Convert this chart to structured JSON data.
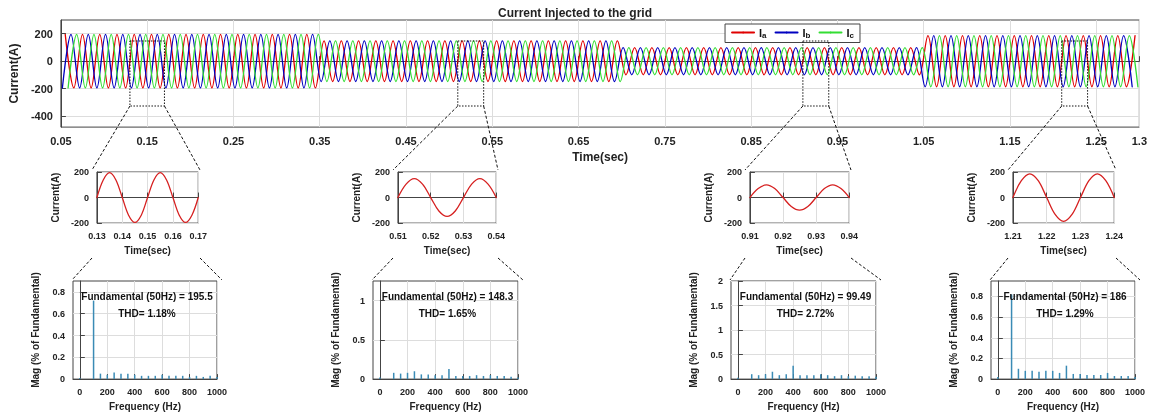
{
  "chart_data": [
    {
      "type": "line",
      "title": "Current Injected to the grid",
      "xlabel": "Time(sec)",
      "ylabel": "Current(A)",
      "xlim": [
        0.05,
        1.3
      ],
      "xticks": [
        0.05,
        0.15,
        0.25,
        0.35,
        0.45,
        0.55,
        0.65,
        0.75,
        0.85,
        0.95,
        1.05,
        1.15,
        1.25,
        1.3
      ],
      "ylim": [
        -480,
        300
      ],
      "yticks": [
        -400,
        -200,
        0,
        200
      ],
      "grid": true,
      "legend": "top right",
      "series": [
        {
          "name": "I$_{a}$",
          "color": "#e00000",
          "x": [
            0.055,
            0.065,
            0.075,
            0.085,
            0.095,
            0.105,
            0.115,
            0.125,
            0.135,
            0.145,
            0.155,
            0.165,
            0.175,
            0.185,
            0.195,
            0.205,
            0.215,
            0.225,
            0.235,
            0.245,
            0.255,
            0.265,
            0.275,
            0.285,
            0.295,
            0.305,
            0.315,
            0.325,
            0.335,
            0.345,
            0.355,
            0.365,
            0.375,
            0.385,
            0.395,
            0.405,
            0.415,
            0.425,
            0.435,
            0.445,
            0.455,
            0.465,
            0.475,
            0.485,
            0.495,
            0.505,
            0.515,
            0.525,
            0.535,
            0.545,
            0.555,
            0.565,
            0.575,
            0.585,
            0.595,
            0.605,
            0.615,
            0.625,
            0.635,
            0.645,
            0.655,
            0.665,
            0.675,
            0.685,
            0.695,
            0.705,
            0.715,
            0.725,
            0.735,
            0.745,
            0.755,
            0.765,
            0.775,
            0.785,
            0.795,
            0.805,
            0.815,
            0.825,
            0.835,
            0.845,
            0.855,
            0.865,
            0.875,
            0.885,
            0.895,
            0.905,
            0.915,
            0.925,
            0.935,
            0.945,
            0.955,
            0.965,
            0.975,
            0.985,
            0.995,
            1.005,
            1.015,
            1.025,
            1.035,
            1.045,
            1.055,
            1.065,
            1.075,
            1.085,
            1.095,
            1.105,
            1.115,
            1.125,
            1.135,
            1.145,
            1.155,
            1.165,
            1.175,
            1.185,
            1.195,
            1.205,
            1.215,
            1.225,
            1.235,
            1.245,
            1.255,
            1.265,
            1.275,
            1.285,
            1.295
          ],
          "values": [
            195,
            -195,
            195,
            -195,
            195,
            -195,
            195,
            -195,
            195,
            -195,
            195,
            -195,
            195,
            -195,
            195,
            -195,
            195,
            -195,
            195,
            -195,
            195,
            -195,
            195,
            -195,
            195,
            -195,
            195,
            -195,
            195,
            -195,
            148,
            -148,
            148,
            -148,
            148,
            -148,
            148,
            -148,
            148,
            -148,
            148,
            -148,
            148,
            -148,
            148,
            -148,
            148,
            -148,
            148,
            -148,
            148,
            -148,
            148,
            -148,
            148,
            -148,
            148,
            -148,
            148,
            -148,
            148,
            -148,
            148,
            -148,
            148,
            -99,
            99,
            -99,
            99,
            -99,
            99,
            -99,
            99,
            -99,
            99,
            -99,
            99,
            -99,
            99,
            -99,
            99,
            -99,
            99,
            -99,
            99,
            -99,
            99,
            -99,
            99,
            -99,
            99,
            -99,
            99,
            -99,
            99,
            -99,
            99,
            -99,
            99,
            -99,
            186,
            -186,
            186,
            -186,
            186,
            -186,
            186,
            -186,
            186,
            -186,
            186,
            -186,
            186,
            -186,
            186,
            -186,
            186,
            -186,
            186,
            -186,
            186,
            -186,
            186,
            -186,
            186
          ]
        },
        {
          "name": "I$_{b}$",
          "color": "#0000c0",
          "x": [
            0.0517,
            0.0617,
            0.0717,
            0.0817,
            0.0917,
            0.1017,
            0.1117,
            0.1217,
            0.1317,
            0.1417,
            0.1517,
            0.1617,
            0.1717,
            0.1817,
            0.1917,
            0.2017,
            0.2117,
            0.2217,
            0.2317,
            0.2417,
            0.2517,
            0.2617,
            0.2717,
            0.2817,
            0.2917,
            0.3017,
            0.3117,
            0.3217,
            0.3317,
            0.3417,
            0.3517,
            0.3617,
            0.3717,
            0.3817,
            0.3917,
            0.4017,
            0.4117,
            0.4217,
            0.4317,
            0.4417,
            0.4517,
            0.4617,
            0.4717,
            0.4817,
            0.4917,
            0.5017,
            0.5117,
            0.5217,
            0.5317,
            0.5417,
            0.5517,
            0.5617,
            0.5717,
            0.5817,
            0.5917,
            0.6017,
            0.6117,
            0.6217,
            0.6317,
            0.6417,
            0.6517,
            0.6617,
            0.6717,
            0.6817,
            0.6917,
            0.7017,
            0.7117,
            0.7217,
            0.7317,
            0.7417,
            0.7517,
            0.7617,
            0.7717,
            0.7817,
            0.7917,
            0.8017,
            0.8117,
            0.8217,
            0.8317,
            0.8417,
            0.8517,
            0.8617,
            0.8717,
            0.8817,
            0.8917,
            0.9017,
            0.9117,
            0.9217,
            0.9317,
            0.9417,
            0.9517,
            0.9617,
            0.9717,
            0.9817,
            0.9917,
            1.0017,
            1.0117,
            1.0217,
            1.0317,
            1.0417,
            1.0517,
            1.0617,
            1.0717,
            1.0817,
            1.0917,
            1.1017,
            1.1117,
            1.1217,
            1.1317,
            1.1417,
            1.1517,
            1.1617,
            1.1717,
            1.1817,
            1.1917,
            1.2017,
            1.2117,
            1.2217,
            1.2317,
            1.2417,
            1.2517,
            1.2617,
            1.2717,
            1.2817,
            1.2917
          ],
          "values": [
            -195,
            195,
            -195,
            195,
            -195,
            195,
            -195,
            195,
            -195,
            195,
            -195,
            195,
            -195,
            195,
            -195,
            195,
            -195,
            195,
            -195,
            195,
            -195,
            195,
            -195,
            195,
            -195,
            195,
            -195,
            195,
            -195,
            195,
            -148,
            148,
            -148,
            148,
            -148,
            148,
            -148,
            148,
            -148,
            148,
            -148,
            148,
            -148,
            148,
            -148,
            148,
            -148,
            148,
            -148,
            148,
            -148,
            148,
            -148,
            148,
            -148,
            148,
            -148,
            148,
            -148,
            148,
            -148,
            148,
            -148,
            148,
            -148,
            99,
            -99,
            99,
            -99,
            99,
            -99,
            99,
            -99,
            99,
            -99,
            99,
            -99,
            99,
            -99,
            99,
            -99,
            99,
            -99,
            99,
            -99,
            99,
            -99,
            99,
            -99,
            99,
            -99,
            99,
            -99,
            99,
            -99,
            99,
            -99,
            99,
            -99,
            99,
            -186,
            186,
            -186,
            186,
            -186,
            186,
            -186,
            186,
            -186,
            186,
            -186,
            186,
            -186,
            186,
            -186,
            186,
            -186,
            186,
            -186,
            186,
            -186,
            186,
            -186,
            186,
            -186
          ]
        },
        {
          "name": "I$_{c}$",
          "color": "#33dd33",
          "x": [
            0.0583,
            0.0683,
            0.0783,
            0.0883,
            0.0983,
            0.1083,
            0.1183,
            0.1283,
            0.1383,
            0.1483,
            0.1583,
            0.1683,
            0.1783,
            0.1883,
            0.1983,
            0.2083,
            0.2183,
            0.2283,
            0.2383,
            0.2483,
            0.2583,
            0.2683,
            0.2783,
            0.2883,
            0.2983,
            0.3083,
            0.3183,
            0.3283,
            0.3383,
            0.3483,
            0.3583,
            0.3683,
            0.3783,
            0.3883,
            0.3983,
            0.4083,
            0.4183,
            0.4283,
            0.4383,
            0.4483,
            0.4583,
            0.4683,
            0.4783,
            0.4883,
            0.4983,
            0.5083,
            0.5183,
            0.5283,
            0.5383,
            0.5483,
            0.5583,
            0.5683,
            0.5783,
            0.5883,
            0.5983,
            0.6083,
            0.6183,
            0.6283,
            0.6383,
            0.6483,
            0.6583,
            0.6683,
            0.6783,
            0.6883,
            0.6983,
            0.7083,
            0.7183,
            0.7283,
            0.7383,
            0.7483,
            0.7583,
            0.7683,
            0.7783,
            0.7883,
            0.7983,
            0.8083,
            0.8183,
            0.8283,
            0.8383,
            0.8483,
            0.8583,
            0.8683,
            0.8783,
            0.8883,
            0.8983,
            0.9083,
            0.9183,
            0.9283,
            0.9383,
            0.9483,
            0.9583,
            0.9683,
            0.9783,
            0.9883,
            0.9983,
            1.0083,
            1.0183,
            1.0283,
            1.0383,
            1.0483,
            1.0583,
            1.0683,
            1.0783,
            1.0883,
            1.0983,
            1.1083,
            1.1183,
            1.1283,
            1.1383,
            1.1483,
            1.1583,
            1.1683,
            1.1783,
            1.1883,
            1.1983,
            1.2083,
            1.2183,
            1.2283,
            1.2383,
            1.2483,
            1.2583,
            1.2683,
            1.2783,
            1.2883,
            1.2983
          ],
          "values": [
            -195,
            195,
            -195,
            195,
            -195,
            195,
            -195,
            195,
            -195,
            195,
            -195,
            195,
            -195,
            195,
            -195,
            195,
            -195,
            195,
            -195,
            195,
            -195,
            195,
            -195,
            195,
            -195,
            195,
            -195,
            195,
            -195,
            195,
            -148,
            148,
            -148,
            148,
            -148,
            148,
            -148,
            148,
            -148,
            148,
            -148,
            148,
            -148,
            148,
            -148,
            148,
            -148,
            148,
            -148,
            148,
            -148,
            148,
            -148,
            148,
            -148,
            148,
            -148,
            148,
            -148,
            148,
            -148,
            148,
            -148,
            148,
            -148,
            99,
            -99,
            99,
            -99,
            99,
            -99,
            99,
            -99,
            99,
            -99,
            99,
            -99,
            99,
            -99,
            99,
            -99,
            99,
            -99,
            99,
            -99,
            99,
            -99,
            99,
            -99,
            99,
            -99,
            99,
            -99,
            99,
            -99,
            99,
            -99,
            99,
            -99,
            99,
            -186,
            186,
            -186,
            186,
            -186,
            186,
            -186,
            186,
            -186,
            186,
            -186,
            186,
            -186,
            186,
            -186,
            186,
            -186,
            186,
            -186,
            186,
            -186,
            186,
            -186,
            186,
            -186
          ]
        }
      ]
    },
    {
      "type": "line",
      "xlabel": "Time(sec)",
      "ylabel": "Current(A)",
      "xlim": [
        0.13,
        0.17
      ],
      "xticks": [
        0.13,
        0.14,
        0.15,
        0.16,
        0.17
      ],
      "ylim": [
        -200,
        200
      ],
      "yticks": [
        -200,
        0,
        200
      ],
      "grid": true,
      "series": [
        {
          "color": "#d62020",
          "x": [
            0.13,
            0.1325,
            0.135,
            0.1375,
            0.14,
            0.1425,
            0.145,
            0.1475,
            0.15,
            0.1525,
            0.155,
            0.1575,
            0.16,
            0.1625,
            0.165,
            0.1675,
            0.17
          ],
          "values": [
            0,
            138,
            195,
            138,
            0,
            -138,
            -195,
            -138,
            0,
            138,
            195,
            138,
            0,
            -138,
            -195,
            -138,
            0
          ]
        }
      ]
    },
    {
      "type": "line",
      "xlabel": "Time(sec)",
      "ylabel": "Current(A)",
      "xlim": [
        0.51,
        0.54
      ],
      "xticks": [
        0.51,
        0.52,
        0.53,
        0.54
      ],
      "ylim": [
        -200,
        200
      ],
      "yticks": [
        -200,
        0,
        200
      ],
      "grid": true,
      "series": [
        {
          "color": "#d62020",
          "x": [
            0.51,
            0.5125,
            0.515,
            0.5175,
            0.52,
            0.5225,
            0.525,
            0.5275,
            0.53,
            0.5325,
            0.535,
            0.5375,
            0.54
          ],
          "values": [
            0,
            105,
            148,
            105,
            0,
            -105,
            -148,
            -105,
            0,
            105,
            148,
            105,
            0
          ]
        }
      ]
    },
    {
      "type": "line",
      "xlabel": "Time(sec)",
      "ylabel": "Current(A)",
      "xlim": [
        0.91,
        0.94
      ],
      "xticks": [
        0.91,
        0.92,
        0.93,
        0.94
      ],
      "ylim": [
        -200,
        200
      ],
      "yticks": [
        -200,
        0,
        200
      ],
      "grid": true,
      "series": [
        {
          "color": "#d62020",
          "x": [
            0.91,
            0.9125,
            0.915,
            0.9175,
            0.92,
            0.9225,
            0.925,
            0.9275,
            0.93,
            0.9325,
            0.935,
            0.9375,
            0.94
          ],
          "values": [
            0,
            70,
            99,
            70,
            0,
            -70,
            -99,
            -70,
            0,
            70,
            99,
            70,
            0
          ]
        }
      ]
    },
    {
      "type": "line",
      "xlabel": "Time(sec)",
      "ylabel": "Current(A)",
      "xlim": [
        1.21,
        1.24
      ],
      "xticks": [
        1.21,
        1.22,
        1.23,
        1.24
      ],
      "ylim": [
        -200,
        200
      ],
      "yticks": [
        -200,
        0,
        200
      ],
      "grid": true,
      "series": [
        {
          "color": "#d62020",
          "x": [
            1.21,
            1.2125,
            1.215,
            1.2175,
            1.22,
            1.2225,
            1.225,
            1.2275,
            1.23,
            1.2325,
            1.235,
            1.2375,
            1.24
          ],
          "values": [
            0,
            132,
            186,
            132,
            0,
            -132,
            -186,
            -132,
            0,
            132,
            186,
            132,
            0
          ]
        }
      ]
    },
    {
      "type": "bar",
      "xlabel": "Frequency (Hz)",
      "ylabel": "Mag (% of Fundamental)",
      "annotations": [
        "Fundamental (50Hz) = 195.5",
        "THD= 1.18%"
      ],
      "color": "#3a8bb5",
      "x": [
        0,
        100,
        150,
        200,
        250,
        300,
        350,
        400,
        450,
        500,
        550,
        600,
        650,
        700,
        750,
        800,
        850,
        900,
        950,
        1000
      ],
      "values": [
        0.01,
        0.72,
        0.05,
        0.04,
        0.06,
        0.05,
        0.05,
        0.04,
        0.03,
        0.03,
        0.03,
        0.04,
        0.03,
        0.03,
        0.03,
        0.02,
        0.03,
        0.02,
        0.03,
        0.02
      ],
      "xlim": [
        -50,
        1000
      ],
      "xticks": [
        0,
        200,
        400,
        600,
        800,
        1000
      ],
      "ylim": [
        0,
        0.9
      ],
      "yticks": [
        0,
        0.2,
        0.4,
        0.6,
        0.8
      ],
      "grid": true
    },
    {
      "type": "bar",
      "xlabel": "Frequency (Hz)",
      "ylabel": "Mag (% of Fundamental)",
      "annotations": [
        "Fundamental (50Hz) = 148.3",
        "THD= 1.65%"
      ],
      "color": "#3a8bb5",
      "x": [
        0,
        100,
        150,
        200,
        250,
        300,
        350,
        400,
        450,
        500,
        550,
        600,
        650,
        700,
        750,
        800,
        850,
        900,
        950,
        1000
      ],
      "values": [
        0.02,
        0.08,
        0.07,
        0.08,
        0.1,
        0.06,
        0.06,
        0.05,
        0.05,
        0.13,
        0.04,
        0.04,
        0.04,
        0.05,
        0.04,
        0.05,
        0.04,
        0.04,
        0.03,
        0.02
      ],
      "xlim": [
        -50,
        1000
      ],
      "xticks": [
        0,
        200,
        400,
        600,
        800,
        1000
      ],
      "ylim": [
        0,
        1.25
      ],
      "yticks": [
        0,
        0.5,
        1
      ],
      "grid": true
    },
    {
      "type": "bar",
      "xlabel": "Frequency (Hz)",
      "ylabel": "Mag (% of Fundamental)",
      "annotations": [
        "Fundamental (50Hz) = 99.49",
        "THD= 2.72%"
      ],
      "color": "#3a8bb5",
      "x": [
        0,
        100,
        150,
        200,
        250,
        300,
        350,
        400,
        450,
        500,
        550,
        600,
        650,
        700,
        750,
        800,
        850,
        900,
        950,
        1000
      ],
      "values": [
        0.03,
        0.1,
        0.08,
        0.1,
        0.15,
        0.08,
        0.1,
        0.27,
        0.08,
        0.08,
        0.08,
        0.1,
        0.08,
        0.06,
        0.08,
        0.06,
        0.07,
        0.06,
        0.06,
        0.05
      ],
      "xlim": [
        -50,
        1000
      ],
      "xticks": [
        0,
        200,
        400,
        600,
        800,
        1000
      ],
      "ylim": [
        0,
        2
      ],
      "yticks": [
        0,
        0.5,
        1,
        1.5,
        2
      ],
      "grid": true
    },
    {
      "type": "bar",
      "xlabel": "Frequency (Hz)",
      "ylabel": "Mag (% of Fundamental)",
      "annotations": [
        "Fundamental (50Hz) = 186",
        "THD= 1.29%"
      ],
      "color": "#3a8bb5",
      "x": [
        0,
        100,
        150,
        200,
        250,
        300,
        350,
        400,
        450,
        500,
        550,
        600,
        650,
        700,
        750,
        800,
        850,
        900,
        950,
        1000
      ],
      "values": [
        0.02,
        0.82,
        0.1,
        0.08,
        0.08,
        0.07,
        0.08,
        0.08,
        0.06,
        0.13,
        0.05,
        0.05,
        0.04,
        0.04,
        0.04,
        0.06,
        0.03,
        0.03,
        0.03,
        0.02
      ],
      "xlim": [
        -50,
        1000
      ],
      "xticks": [
        0,
        200,
        400,
        600,
        800,
        1000
      ],
      "ylim": [
        0,
        0.95
      ],
      "yticks": [
        0,
        0.2,
        0.4,
        0.6,
        0.8
      ],
      "grid": true
    }
  ]
}
